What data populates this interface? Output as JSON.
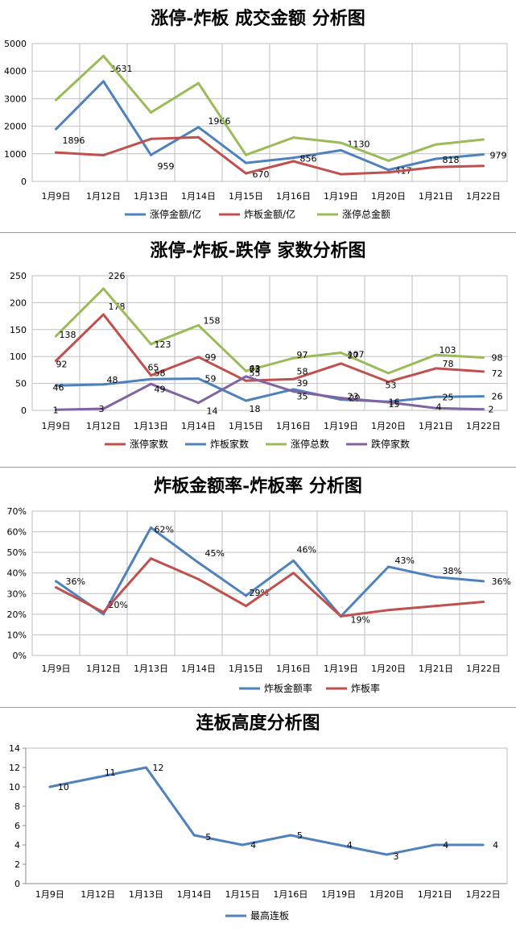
{
  "chart_data": [
    {
      "type": "line",
      "title": "涨停-炸板 成交金额 分析图",
      "categories": [
        "1月9日",
        "1月12日",
        "1月13日",
        "1月14日",
        "1月15日",
        "1月16日",
        "1月19日",
        "1月20日",
        "1月21日",
        "1月22日"
      ],
      "yticks": [
        "0",
        "1000",
        "2000",
        "3000",
        "4000",
        "5000"
      ],
      "ylim": [
        0,
        5000
      ],
      "grid": true,
      "legend": "bottom",
      "series": [
        {
          "name": "涨停金额/亿",
          "color": "#4f81bd",
          "values": [
            1896,
            3631,
            959,
            1966,
            670,
            856,
            1130,
            417,
            818,
            979
          ],
          "labels": [
            "1896",
            "3631",
            "959",
            "1966",
            "670",
            "856",
            "1130",
            "417",
            "818",
            "979"
          ]
        },
        {
          "name": "炸板金额/亿",
          "color": "#c0504d",
          "values": [
            1050,
            950,
            1540,
            1600,
            290,
            730,
            260,
            330,
            520,
            560
          ],
          "labels": [
            "",
            "",
            "",
            "",
            "",
            "",
            "",
            "",
            "",
            ""
          ]
        },
        {
          "name": "涨停总金额",
          "color": "#9bbb59",
          "values": [
            2950,
            4550,
            2500,
            3560,
            960,
            1590,
            1400,
            750,
            1340,
            1520
          ],
          "labels": [
            "",
            "",
            "",
            "",
            "",
            "",
            "",
            "",
            "",
            ""
          ]
        }
      ]
    },
    {
      "type": "line",
      "title": "涨停-炸板-跌停 家数分析图",
      "categories": [
        "1月9日",
        "1月12日",
        "1月13日",
        "1月14日",
        "1月15日",
        "1月16日",
        "1月19日",
        "1月20日",
        "1月21日",
        "1月22日"
      ],
      "yticks": [
        "0",
        "50",
        "100",
        "150",
        "200",
        "250"
      ],
      "ylim": [
        0,
        250
      ],
      "grid": true,
      "legend": "bottom",
      "series": [
        {
          "name": "涨停家数",
          "color": "#c0504d",
          "values": [
            92,
            178,
            65,
            99,
            55,
            58,
            87,
            53,
            78,
            72
          ],
          "labels": [
            "92",
            "178",
            "65",
            "99",
            "55",
            "58",
            "87",
            "53",
            "78",
            "72"
          ]
        },
        {
          "name": "炸板家数",
          "color": "#4f81bd",
          "values": [
            46,
            48,
            58,
            59,
            18,
            39,
            20,
            16,
            25,
            26
          ],
          "labels": [
            "46",
            "48",
            "58",
            "59",
            "18",
            "39",
            "20",
            "16",
            "25",
            "26"
          ]
        },
        {
          "name": "涨停总数",
          "color": "#9bbb59",
          "values": [
            138,
            226,
            123,
            158,
            73,
            97,
            107,
            69,
            103,
            98
          ],
          "labels": [
            "138",
            "226",
            "123",
            "158",
            "73",
            "97",
            "107",
            "",
            "103",
            "98"
          ]
        },
        {
          "name": "跌停家数",
          "color": "#8064a2",
          "values": [
            1,
            3,
            49,
            14,
            63,
            35,
            23,
            15,
            4,
            2
          ],
          "labels": [
            "1",
            "3",
            "49",
            "14",
            "63",
            "35",
            "23",
            "15",
            "4",
            "2"
          ]
        }
      ]
    },
    {
      "type": "line",
      "title": "炸板金额率-炸板率 分析图",
      "categories": [
        "1月9日",
        "1月12日",
        "1月13日",
        "1月14日",
        "1月15日",
        "1月16日",
        "1月19日",
        "1月20日",
        "1月21日",
        "1月22日"
      ],
      "yticks": [
        "0%",
        "10%",
        "20%",
        "30%",
        "40%",
        "50%",
        "60%",
        "70%"
      ],
      "ylim": [
        0,
        70
      ],
      "grid": true,
      "legend": "bottom",
      "series": [
        {
          "name": "炸板金额率",
          "color": "#4f81bd",
          "values": [
            36,
            20,
            62,
            45,
            29,
            46,
            19,
            43,
            38,
            36
          ],
          "labels": [
            "36%",
            "20%",
            "62%",
            "45%",
            "29%",
            "46%",
            "19%",
            "43%",
            "38%",
            "36%"
          ]
        },
        {
          "name": "炸板率",
          "color": "#c0504d",
          "values": [
            33,
            21,
            47,
            37,
            24,
            40,
            19,
            22,
            24,
            26
          ],
          "labels": [
            "",
            "",
            "",
            "",
            "",
            "",
            "",
            "",
            "",
            ""
          ]
        }
      ]
    },
    {
      "type": "line",
      "title": "连板高度分析图",
      "categories": [
        "1月9日",
        "1月12日",
        "1月13日",
        "1月14日",
        "1月15日",
        "1月16日",
        "1月19日",
        "1月20日",
        "1月21日",
        "1月22日"
      ],
      "yticks": [
        "0",
        "2",
        "4",
        "6",
        "8",
        "10",
        "12",
        "14"
      ],
      "ylim": [
        0,
        14
      ],
      "grid": false,
      "legend": "bottom",
      "series": [
        {
          "name": "最高连板",
          "color": "#4f81bd",
          "values": [
            10,
            11,
            12,
            5,
            4,
            5,
            4,
            3,
            4,
            4
          ],
          "labels": [
            "10",
            "11",
            "12",
            "5",
            "4",
            "5",
            "4",
            "3",
            "4",
            "4"
          ]
        }
      ]
    }
  ]
}
